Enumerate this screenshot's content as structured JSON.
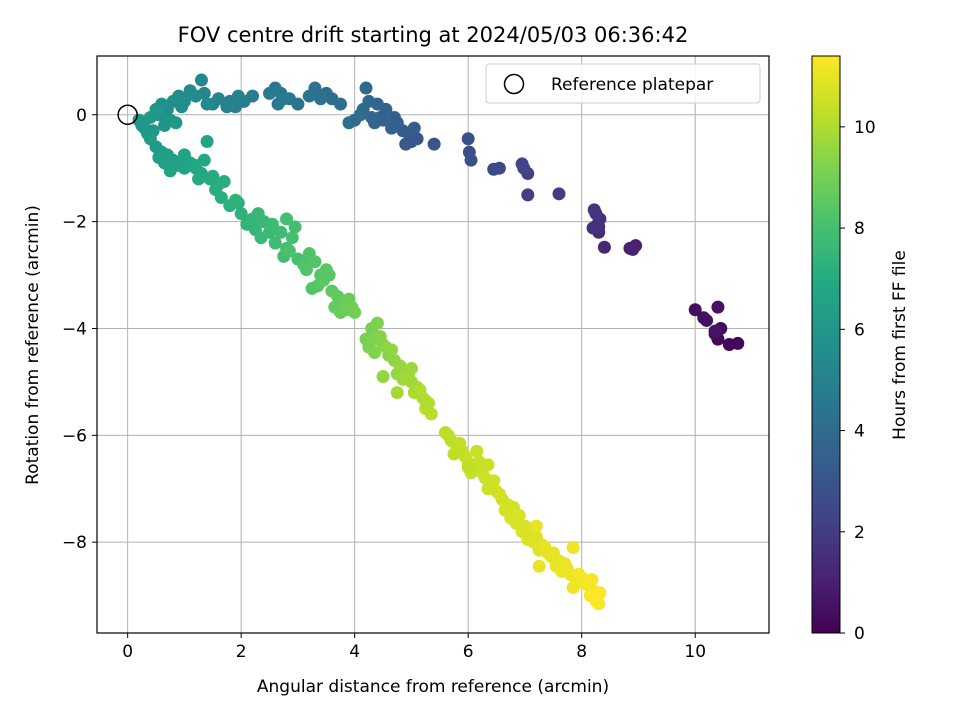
{
  "chart_data": {
    "type": "scatter",
    "title": "FOV centre drift starting at 2024/05/03 06:36:42",
    "xlabel": "Angular distance from reference (arcmin)",
    "ylabel": "Rotation from reference (arcmin)",
    "xlim": [
      -0.54,
      11.3
    ],
    "ylim": [
      -9.7,
      1.1
    ],
    "xticks": [
      0,
      2,
      4,
      6,
      8,
      10
    ],
    "yticks": [
      0,
      -2,
      -4,
      -6,
      -8
    ],
    "grid": true,
    "legend": {
      "placement": "top-right",
      "entries": [
        "Reference platepar"
      ]
    },
    "colorbar": {
      "label": "Hours from first FF file",
      "colormap": "viridis",
      "range": [
        0,
        11.4
      ],
      "ticks": [
        0,
        2,
        4,
        6,
        8,
        10
      ]
    },
    "reference_point": {
      "x": 0,
      "y": 0,
      "label": "Reference platepar"
    },
    "series": [
      {
        "x": [
          10.6,
          10.75,
          10.4,
          10.35,
          10.45,
          10.0,
          10.15,
          10.2,
          10.4,
          10.35
        ],
        "y": [
          -4.3,
          -4.28,
          -4.2,
          -4.1,
          -4.0,
          -3.65,
          -3.8,
          -3.85,
          -3.6,
          -4.05
        ],
        "hours": [
          0.1,
          0.1,
          0.2,
          0.25,
          0.3,
          0.4,
          0.45,
          0.5,
          0.55,
          0.6
        ]
      },
      {
        "x": [
          8.95,
          8.85,
          8.9,
          8.4,
          8.3,
          8.3,
          8.2,
          8.28,
          8.32,
          8.25,
          8.22
        ],
        "y": [
          -2.45,
          -2.5,
          -2.52,
          -2.48,
          -2.2,
          -2.1,
          -2.12,
          -2.05,
          -1.95,
          -1.85,
          -1.78
        ],
        "hours": [
          1.0,
          1.05,
          1.1,
          1.2,
          1.4,
          1.5,
          1.55,
          1.6,
          1.65,
          1.7,
          1.75
        ]
      },
      {
        "x": [
          7.6,
          7.05,
          7.05,
          6.95,
          6.98,
          6.55,
          6.45,
          6.05,
          6.02,
          6.0
        ],
        "y": [
          -1.48,
          -1.5,
          -1.1,
          -0.92,
          -1.0,
          -1.0,
          -1.02,
          -0.85,
          -0.7,
          -0.45
        ],
        "hours": [
          2.0,
          2.1,
          2.2,
          2.3,
          2.35,
          2.5,
          2.55,
          2.7,
          2.75,
          2.8
        ]
      },
      {
        "x": [
          5.4,
          5.1,
          5.0,
          4.9,
          4.95,
          4.85,
          5.05,
          4.75,
          4.65,
          4.7,
          4.5,
          4.45,
          4.55,
          4.4,
          4.35,
          4.3,
          4.25,
          4.2,
          4.15,
          4.0,
          3.9,
          4.1,
          3.75,
          3.6,
          3.5,
          3.4,
          3.3,
          3.2,
          3.0,
          2.85,
          2.7,
          2.65,
          2.5,
          2.6,
          2.75
        ],
        "y": [
          -0.55,
          -0.45,
          -0.5,
          -0.55,
          -0.35,
          -0.3,
          -0.25,
          -0.15,
          -0.25,
          -0.05,
          -0.1,
          -0.05,
          0.1,
          0.2,
          -0.15,
          -0.05,
          0.25,
          0.5,
          0.1,
          -0.1,
          -0.15,
          0.0,
          0.2,
          0.3,
          0.4,
          0.3,
          0.5,
          0.35,
          0.2,
          0.3,
          0.4,
          0.2,
          0.4,
          0.5,
          0.3
        ],
        "hours": [
          3.0,
          3.05,
          3.1,
          3.15,
          3.2,
          3.25,
          3.3,
          3.35,
          3.4,
          3.45,
          3.5,
          3.55,
          3.6,
          3.65,
          3.7,
          3.75,
          3.8,
          3.85,
          3.9,
          3.95,
          4.0,
          4.05,
          4.1,
          4.15,
          4.2,
          4.25,
          4.3,
          4.35,
          4.4,
          4.45,
          4.5,
          4.55,
          4.6,
          4.65,
          4.7
        ]
      },
      {
        "x": [
          2.2,
          2.05,
          1.9,
          1.8,
          1.95,
          1.75,
          1.6,
          1.5,
          1.35,
          1.3,
          1.4,
          1.2,
          1.1,
          1.0,
          0.9,
          0.95,
          0.8,
          0.7,
          0.6,
          0.5,
          0.55,
          0.75,
          0.65,
          0.45,
          0.35,
          0.3,
          0.25,
          0.2,
          0.4,
          0.5,
          0.85
        ],
        "y": [
          0.35,
          0.25,
          0.15,
          0.25,
          0.35,
          0.15,
          0.3,
          0.2,
          0.4,
          0.65,
          0.2,
          0.35,
          0.45,
          0.25,
          0.35,
          0.15,
          0.25,
          0.1,
          0.2,
          0.1,
          0.0,
          -0.1,
          -0.2,
          -0.3,
          -0.35,
          -0.25,
          -0.2,
          -0.1,
          -0.05,
          0.05,
          -0.15
        ],
        "hours": [
          4.8,
          4.85,
          4.9,
          4.95,
          5.0,
          5.05,
          5.1,
          5.15,
          5.2,
          5.25,
          5.3,
          5.35,
          5.4,
          5.45,
          5.5,
          5.55,
          5.6,
          5.65,
          5.7,
          5.75,
          5.8,
          5.85,
          5.9,
          5.95,
          6.0,
          6.02,
          6.04,
          6.06,
          6.08,
          6.1,
          6.12
        ]
      },
      {
        "x": [
          0.4,
          0.5,
          0.6,
          0.55,
          0.7,
          0.65,
          0.8,
          0.9,
          1.0,
          0.75,
          1.1,
          1.2,
          1.3,
          1.35,
          1.2,
          1.45,
          1.5,
          1.6,
          1.55,
          1.7,
          1.65,
          1.8,
          1.95,
          2.0,
          1.9,
          2.1,
          2.2,
          2.25,
          2.3,
          2.4,
          2.35,
          2.5,
          2.55,
          1.4,
          1.0,
          1.25
        ],
        "y": [
          -0.45,
          -0.6,
          -0.7,
          -0.8,
          -0.75,
          -0.9,
          -0.85,
          -0.95,
          -1.0,
          -1.05,
          -0.9,
          -1.0,
          -1.1,
          -0.85,
          -0.95,
          -1.2,
          -1.15,
          -1.3,
          -1.4,
          -1.25,
          -1.55,
          -1.7,
          -1.65,
          -1.85,
          -1.6,
          -2.05,
          -1.95,
          -2.15,
          -1.85,
          -2.0,
          -2.3,
          -2.2,
          -2.05,
          -0.5,
          -0.75,
          -1.2
        ],
        "hours": [
          6.15,
          6.2,
          6.25,
          6.3,
          6.35,
          6.4,
          6.45,
          6.5,
          6.55,
          6.6,
          6.65,
          6.7,
          6.75,
          6.8,
          6.85,
          6.9,
          6.95,
          7.0,
          7.05,
          7.1,
          7.15,
          7.2,
          7.25,
          7.3,
          7.35,
          7.4,
          7.45,
          7.5,
          7.55,
          7.6,
          7.65,
          7.7,
          7.75,
          6.7,
          6.6,
          6.9
        ]
      },
      {
        "x": [
          2.6,
          2.7,
          2.8,
          2.75,
          2.9,
          3.0,
          2.85,
          3.1,
          3.2,
          3.15,
          3.3,
          3.4,
          3.35,
          3.5,
          3.45,
          3.6,
          3.7,
          3.65,
          3.8,
          3.75,
          3.9,
          3.85,
          4.0,
          3.95,
          3.55,
          3.25,
          2.8,
          2.95
        ],
        "y": [
          -2.4,
          -2.2,
          -2.5,
          -2.65,
          -2.3,
          -2.7,
          -2.55,
          -2.8,
          -2.6,
          -2.9,
          -2.75,
          -3.0,
          -3.2,
          -2.9,
          -3.1,
          -3.3,
          -3.4,
          -3.6,
          -3.5,
          -3.7,
          -3.45,
          -3.65,
          -3.7,
          -3.6,
          -3.0,
          -3.25,
          -1.95,
          -2.1
        ],
        "hours": [
          7.8,
          7.85,
          7.9,
          7.95,
          8.0,
          8.05,
          8.1,
          8.15,
          8.2,
          8.25,
          8.3,
          8.35,
          8.4,
          8.45,
          8.5,
          8.55,
          8.6,
          8.65,
          8.7,
          8.75,
          8.8,
          8.85,
          8.9,
          8.95,
          8.45,
          8.3,
          7.9,
          8.0
        ]
      },
      {
        "x": [
          4.2,
          4.3,
          4.25,
          4.4,
          4.35,
          4.5,
          4.45,
          4.6,
          4.55,
          4.7,
          4.65,
          4.8,
          4.75,
          4.9,
          4.85,
          5.0,
          4.95,
          5.1,
          5.05,
          5.2,
          5.15,
          5.3,
          5.25,
          5.35,
          4.5,
          4.75,
          5.0,
          4.35,
          5.25
        ],
        "y": [
          -4.2,
          -4.0,
          -4.35,
          -3.9,
          -4.2,
          -4.3,
          -4.15,
          -4.5,
          -4.35,
          -4.6,
          -4.4,
          -4.7,
          -4.85,
          -4.8,
          -4.95,
          -5.0,
          -4.9,
          -5.1,
          -5.2,
          -5.3,
          -5.15,
          -5.4,
          -5.5,
          -5.6,
          -4.9,
          -5.2,
          -4.75,
          -4.45,
          -5.35
        ],
        "hours": [
          9.0,
          9.05,
          9.1,
          9.15,
          9.2,
          9.25,
          9.3,
          9.35,
          9.4,
          9.45,
          9.5,
          9.55,
          9.6,
          9.65,
          9.7,
          9.75,
          9.8,
          9.85,
          9.9,
          9.95,
          10.0,
          10.05,
          10.1,
          10.15,
          9.55,
          9.8,
          9.7,
          9.25,
          10.05
        ]
      },
      {
        "x": [
          5.6,
          5.7,
          5.65,
          5.8,
          5.75,
          5.9,
          5.85,
          6.0,
          5.95,
          6.1,
          6.05,
          6.2,
          6.15,
          6.3,
          6.25,
          6.4,
          6.35,
          6.5,
          6.45,
          6.6,
          6.55,
          6.7,
          6.65,
          6.8,
          6.75,
          6.9,
          6.85,
          7.0,
          6.95,
          7.1,
          7.05,
          7.2,
          7.15,
          7.3,
          7.25,
          7.4,
          7.35,
          7.5,
          7.45,
          7.2,
          6.0,
          6.35
        ],
        "y": [
          -5.95,
          -6.1,
          -6.0,
          -6.2,
          -6.35,
          -6.3,
          -6.15,
          -6.5,
          -6.4,
          -6.6,
          -6.7,
          -6.5,
          -6.3,
          -6.8,
          -6.7,
          -6.9,
          -7.0,
          -7.05,
          -6.85,
          -7.2,
          -7.1,
          -7.3,
          -7.4,
          -7.35,
          -7.55,
          -7.5,
          -7.65,
          -7.7,
          -7.8,
          -7.75,
          -7.95,
          -7.9,
          -8.0,
          -8.05,
          -8.15,
          -8.2,
          -8.1,
          -8.3,
          -8.25,
          -7.7,
          -6.6,
          -6.55
        ],
        "hours": [
          10.2,
          10.22,
          10.24,
          10.26,
          10.28,
          10.3,
          10.32,
          10.34,
          10.36,
          10.38,
          10.4,
          10.42,
          10.44,
          10.46,
          10.48,
          10.5,
          10.52,
          10.54,
          10.56,
          10.58,
          10.6,
          10.62,
          10.64,
          10.66,
          10.68,
          10.7,
          10.72,
          10.74,
          10.76,
          10.78,
          10.8,
          10.82,
          10.84,
          10.86,
          10.88,
          10.9,
          10.92,
          10.94,
          10.96,
          10.98,
          10.3,
          10.45
        ]
      },
      {
        "x": [
          7.5,
          7.6,
          7.55,
          7.7,
          7.65,
          7.8,
          7.75,
          7.9,
          7.85,
          8.0,
          7.95,
          8.1,
          8.05,
          8.2,
          8.15,
          8.25,
          8.3,
          8.28,
          8.22,
          8.32,
          8.18,
          8.26,
          7.25,
          7.85
        ],
        "y": [
          -8.2,
          -8.35,
          -8.45,
          -8.4,
          -8.55,
          -8.6,
          -8.5,
          -8.7,
          -8.85,
          -8.75,
          -8.6,
          -8.8,
          -8.7,
          -8.9,
          -9.0,
          -9.05,
          -9.15,
          -9.1,
          -9.0,
          -8.95,
          -8.7,
          -9.12,
          -8.45,
          -8.1
        ],
        "hours": [
          11.0,
          11.02,
          11.04,
          11.06,
          11.08,
          11.1,
          11.12,
          11.14,
          11.16,
          11.18,
          11.2,
          11.22,
          11.24,
          11.26,
          11.28,
          11.3,
          11.32,
          11.34,
          11.36,
          11.38,
          11.3,
          11.35,
          11.0,
          11.1
        ]
      }
    ]
  }
}
